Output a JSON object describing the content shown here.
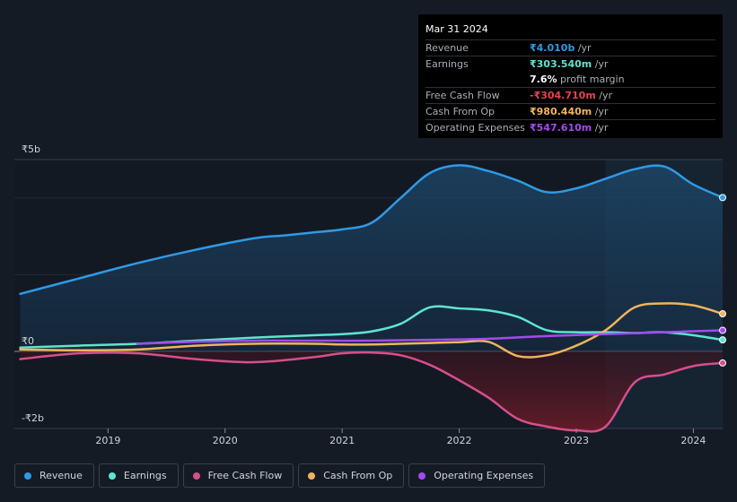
{
  "tooltip": {
    "date": "Mar 31 2024",
    "rows": [
      {
        "label": "Revenue",
        "value": "₹4.010b",
        "unit": " /yr",
        "color": "#2f9ae6"
      },
      {
        "label": "Earnings",
        "value": "₹303.540m",
        "unit": " /yr",
        "color": "#5ee5cf"
      },
      {
        "label": "",
        "value": "7.6%",
        "unit": " profit margin",
        "color": "#ffffff"
      },
      {
        "label": "Free Cash Flow",
        "value": "-₹304.710m",
        "unit": " /yr",
        "color": "#e8424f"
      },
      {
        "label": "Cash From Op",
        "value": "₹980.440m",
        "unit": " /yr",
        "color": "#f0b45c"
      },
      {
        "label": "Operating Expenses",
        "value": "₹547.610m",
        "unit": " /yr",
        "color": "#a24bf1"
      }
    ]
  },
  "legend": [
    {
      "label": "Revenue",
      "color": "#2f9ae6"
    },
    {
      "label": "Earnings",
      "color": "#5ee5cf"
    },
    {
      "label": "Free Cash Flow",
      "color": "#d64f8c"
    },
    {
      "label": "Cash From Op",
      "color": "#f0b45c"
    },
    {
      "label": "Operating Expenses",
      "color": "#a24bf1"
    }
  ],
  "chart_data": {
    "type": "area",
    "y_tick_labels": [
      "₹5b",
      "₹0",
      "-₹2b"
    ],
    "x_tick_labels": [
      "2019",
      "2020",
      "2021",
      "2022",
      "2023",
      "2024"
    ],
    "ylim": [
      -2,
      5
    ],
    "xlim": [
      2018.2,
      2024.25
    ],
    "forecast_shade_from": 2023.25,
    "series": [
      {
        "name": "Revenue",
        "color": "#2f9ae6",
        "fill": true,
        "x": [
          2018.25,
          2018.75,
          2019.25,
          2019.75,
          2020.25,
          2020.5,
          2020.75,
          2021.0,
          2021.25,
          2021.5,
          2021.75,
          2022.0,
          2022.25,
          2022.5,
          2022.75,
          2023.0,
          2023.25,
          2023.5,
          2023.75,
          2024.0,
          2024.25
        ],
        "y": [
          1.5,
          1.9,
          2.3,
          2.65,
          2.95,
          3.02,
          3.1,
          3.18,
          3.35,
          4.0,
          4.65,
          4.85,
          4.7,
          4.45,
          4.15,
          4.25,
          4.5,
          4.75,
          4.82,
          4.35,
          4.01
        ]
      },
      {
        "name": "Earnings",
        "color": "#5ee5cf",
        "fill": false,
        "x": [
          2018.25,
          2018.75,
          2019.25,
          2019.75,
          2020.25,
          2020.75,
          2021.0,
          2021.25,
          2021.5,
          2021.75,
          2022.0,
          2022.25,
          2022.5,
          2022.75,
          2023.0,
          2023.25,
          2023.5,
          2023.75,
          2024.0,
          2024.25
        ],
        "y": [
          0.1,
          0.15,
          0.2,
          0.28,
          0.36,
          0.42,
          0.45,
          0.52,
          0.72,
          1.15,
          1.12,
          1.07,
          0.9,
          0.55,
          0.5,
          0.5,
          0.48,
          0.5,
          0.42,
          0.3
        ]
      },
      {
        "name": "Free Cash Flow",
        "color": "#d64f8c",
        "fill": true,
        "fill_color": "#5a1a26",
        "x": [
          2018.25,
          2018.75,
          2019.25,
          2019.75,
          2020.25,
          2020.75,
          2021.0,
          2021.25,
          2021.5,
          2021.75,
          2022.0,
          2022.25,
          2022.5,
          2022.75,
          2023.0,
          2023.25,
          2023.5,
          2023.75,
          2024.0,
          2024.25
        ],
        "y": [
          -0.2,
          -0.05,
          -0.05,
          -0.2,
          -0.28,
          -0.15,
          -0.05,
          -0.03,
          -0.1,
          -0.35,
          -0.75,
          -1.2,
          -1.75,
          -1.95,
          -2.05,
          -1.95,
          -0.8,
          -0.6,
          -0.38,
          -0.3
        ]
      },
      {
        "name": "Cash From Op",
        "color": "#f0b45c",
        "fill": false,
        "x": [
          2018.25,
          2018.75,
          2019.25,
          2019.75,
          2020.25,
          2020.75,
          2021.0,
          2021.25,
          2021.5,
          2021.75,
          2022.0,
          2022.25,
          2022.5,
          2022.75,
          2023.0,
          2023.25,
          2023.5,
          2023.75,
          2024.0,
          2024.25
        ],
        "y": [
          0.05,
          0.03,
          0.05,
          0.15,
          0.2,
          0.2,
          0.18,
          0.18,
          0.2,
          0.22,
          0.24,
          0.25,
          -0.12,
          -0.1,
          0.15,
          0.55,
          1.15,
          1.25,
          1.2,
          0.98
        ]
      },
      {
        "name": "Operating Expenses",
        "color": "#a24bf1",
        "fill": false,
        "x": [
          2019.25,
          2019.75,
          2020.25,
          2020.75,
          2021.25,
          2021.75,
          2022.25,
          2022.75,
          2023.25,
          2023.75,
          2024.25
        ],
        "y": [
          0.2,
          0.25,
          0.28,
          0.28,
          0.28,
          0.3,
          0.33,
          0.4,
          0.45,
          0.5,
          0.55
        ]
      }
    ]
  }
}
